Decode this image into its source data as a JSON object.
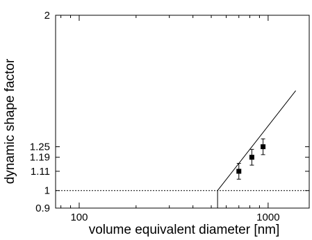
{
  "chart_data": {
    "type": "scatter",
    "xlabel": "volume equivalent diameter [nm]",
    "ylabel": "dynamic shape factor",
    "x_scale": "log",
    "xlim": [
      75,
      1650
    ],
    "ylim": [
      0.9,
      2
    ],
    "x_ticks": [
      {
        "value": 100,
        "label": "100"
      },
      {
        "value": 1000,
        "label": "1000"
      }
    ],
    "y_ticks": [
      {
        "value": 0.9,
        "label": "0.9"
      },
      {
        "value": 1,
        "label": "1"
      },
      {
        "value": 1.11,
        "label": "1.11"
      },
      {
        "value": 1.19,
        "label": "1.19"
      },
      {
        "value": 1.25,
        "label": "1.25"
      },
      {
        "value": 2,
        "label": "2"
      }
    ],
    "grid": false,
    "series": [
      {
        "type": "scatter",
        "marker": "square",
        "points": [
          {
            "x": 700,
            "y": 1.11,
            "err_low": 0.045,
            "err_high": 0.045
          },
          {
            "x": 820,
            "y": 1.19,
            "err_low": 0.045,
            "err_high": 0.045
          },
          {
            "x": 940,
            "y": 1.25,
            "err_low": 0.045,
            "err_high": 0.045
          }
        ]
      },
      {
        "type": "line",
        "style": "solid",
        "x": [
          540,
          540,
          1400
        ],
        "y": [
          0.9,
          1.0,
          1.57
        ]
      },
      {
        "type": "line",
        "style": "dashed",
        "x": [
          75,
          1650
        ],
        "y": [
          1.0,
          1.0
        ]
      }
    ]
  }
}
